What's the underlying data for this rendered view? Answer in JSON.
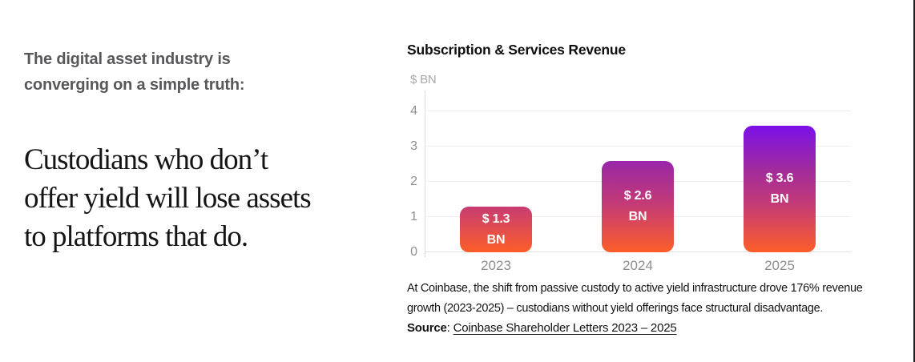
{
  "page": {
    "left": {
      "intro_lines": [
        "The digital asset industry is",
        "converging on a simple truth:"
      ],
      "headline_lines": [
        "Custodians who don’t",
        "offer yield will lose assets",
        "to platforms that do."
      ]
    },
    "caption": "At Coinbase, the shift from passive custody to active yield infrastructure drove 176% revenue growth (2023-2025) – custodians without yield offerings face structural disadvantage.",
    "source": {
      "label": "Source",
      "separator": ":",
      "link": "Coinbase Shareholder Letters 2023 – 2025"
    }
  },
  "chart_data": {
    "type": "bar",
    "title": "Subscription & Services Revenue",
    "ylabel": "$ BN",
    "xlabel": "",
    "categories": [
      "2023",
      "2024",
      "2025"
    ],
    "values": [
      1.3,
      2.6,
      3.6
    ],
    "bar_labels": [
      [
        "$ 1.3",
        "BN"
      ],
      [
        "$ 2.6",
        "BN"
      ],
      [
        "$ 3.6",
        "BN"
      ]
    ],
    "yticks": [
      0,
      1,
      2,
      3,
      4
    ],
    "ylim": [
      0,
      4.6
    ],
    "grid": true,
    "legend": false,
    "colors": {
      "gradient_top": "#7b10e9",
      "gradient_upper_mid": "#a02b9e",
      "gradient_lower_mid": "#c43a76",
      "gradient_bottom": "#fc5e29",
      "axis": "#dadada",
      "gridline": "#efefef",
      "tick_text": "#8f8f8f",
      "bar_label_text": "#ffffff",
      "title_text": "#101010"
    }
  }
}
